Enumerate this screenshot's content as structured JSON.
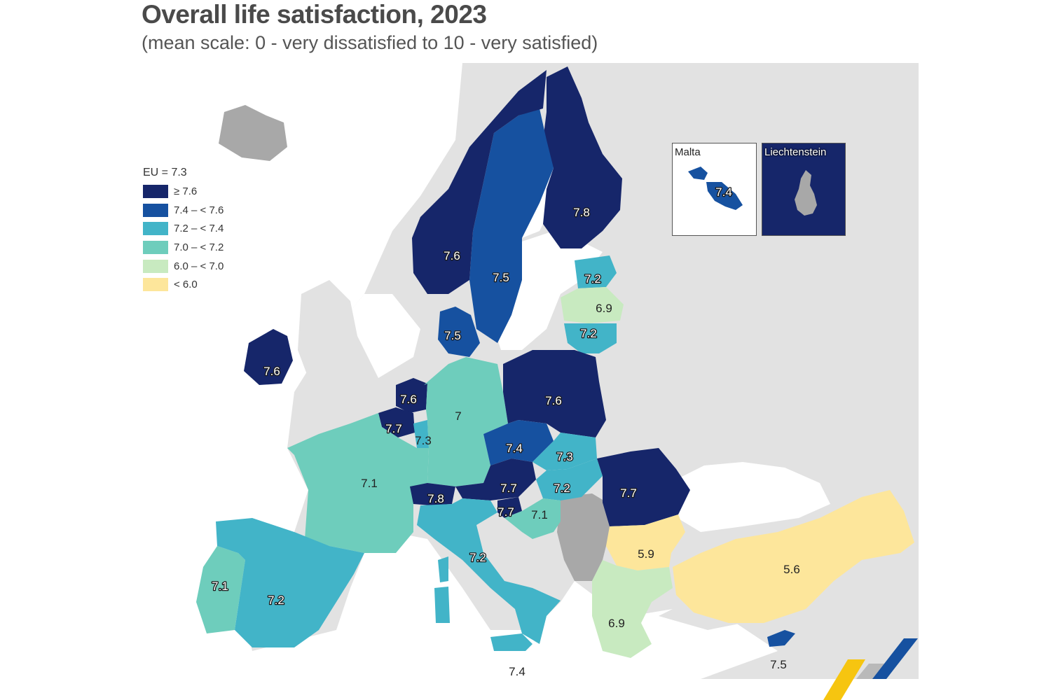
{
  "title": "Overall life satisfaction, 2023",
  "subtitle": "(mean scale: 0 - very dissatisfied to 10 - very satisfied)",
  "legend": {
    "title": "EU = 7.3",
    "classes": [
      {
        "label": "≥ 7.6",
        "color": "#16266a"
      },
      {
        "label": "7.4 – < 7.6",
        "color": "#1651a0"
      },
      {
        "label": "7.2 – < 7.4",
        "color": "#42b4c8"
      },
      {
        "label": "7.0 – < 7.2",
        "color": "#6ecdbc"
      },
      {
        "label": "6.0 – < 7.0",
        "color": "#c8eac0"
      },
      {
        "label": "< 6.0",
        "color": "#fde69b"
      }
    ]
  },
  "colors": {
    "no_data": "#a8a8a8",
    "outside": "#e2e2e2",
    "sea": "#ffffff"
  },
  "insets": {
    "malta": {
      "name": "Malta",
      "value": "7.4"
    },
    "liechtenstein": {
      "name": "Liechtenstein"
    }
  },
  "countries": [
    {
      "name": "Finland",
      "value": "7.8"
    },
    {
      "name": "Sweden",
      "value": "7.5"
    },
    {
      "name": "Norway",
      "value": "7.6"
    },
    {
      "name": "Estonia",
      "value": "7.2"
    },
    {
      "name": "Latvia",
      "value": "6.9"
    },
    {
      "name": "Lithuania",
      "value": "7.2"
    },
    {
      "name": "Denmark",
      "value": "7.5"
    },
    {
      "name": "Ireland",
      "value": "7.6"
    },
    {
      "name": "Netherlands",
      "value": "7.6"
    },
    {
      "name": "Belgium",
      "value": "7.7"
    },
    {
      "name": "Luxembourg",
      "value": "7.3"
    },
    {
      "name": "Germany",
      "value": "7"
    },
    {
      "name": "Poland",
      "value": "7.6"
    },
    {
      "name": "Czechia",
      "value": "7.4"
    },
    {
      "name": "Slovakia",
      "value": "7.3"
    },
    {
      "name": "Austria",
      "value": "7.7"
    },
    {
      "name": "Hungary",
      "value": "7.2"
    },
    {
      "name": "Romania",
      "value": "7.7"
    },
    {
      "name": "France",
      "value": "7.1"
    },
    {
      "name": "Switzerland",
      "value": "7.8"
    },
    {
      "name": "Slovenia",
      "value": "7.7"
    },
    {
      "name": "Croatia",
      "value": "7.1"
    },
    {
      "name": "Italy",
      "value": "7.2"
    },
    {
      "name": "Bulgaria",
      "value": "5.9"
    },
    {
      "name": "Türkiye",
      "value": "5.6"
    },
    {
      "name": "Portugal",
      "value": "7.1"
    },
    {
      "name": "Spain",
      "value": "7.2"
    },
    {
      "name": "Greece",
      "value": "6.9"
    },
    {
      "name": "Cyprus",
      "value": "7.5"
    },
    {
      "name": "Sicily",
      "value": "7.4"
    }
  ]
}
